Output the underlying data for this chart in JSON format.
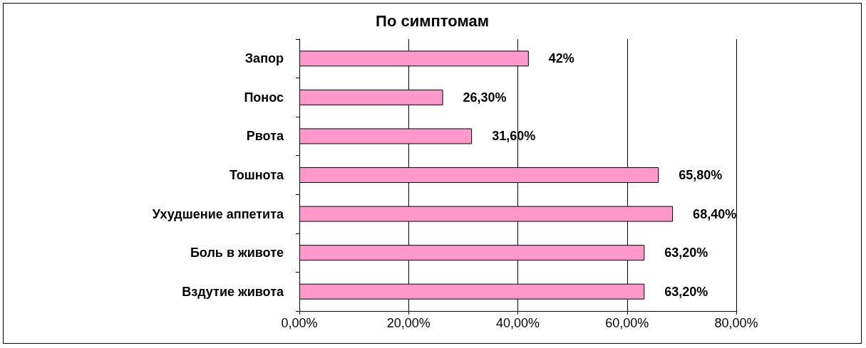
{
  "chart_data": {
    "type": "bar",
    "orientation": "horizontal",
    "title": "По симптомам",
    "categories": [
      "Запор",
      "Понос",
      "Рвота",
      "Тошнота",
      "Ухудшение аппетита",
      "Боль в животе",
      "Вздутие живота"
    ],
    "values": [
      42,
      26.3,
      31.6,
      65.8,
      68.4,
      63.2,
      63.2
    ],
    "value_labels": [
      "42%",
      "26,30%",
      "31,60%",
      "65,80%",
      "68,40%",
      "63,20%",
      "63,20%"
    ],
    "color": "#ff99cc",
    "xlim": [
      0,
      80
    ],
    "xticks": [
      {
        "value": 0,
        "label": "0,00%"
      },
      {
        "value": 20,
        "label": "20,00%"
      },
      {
        "value": 40,
        "label": "40,00%"
      },
      {
        "value": 60,
        "label": "60,00%"
      },
      {
        "value": 80,
        "label": "80,00%"
      }
    ],
    "grid": "x"
  }
}
